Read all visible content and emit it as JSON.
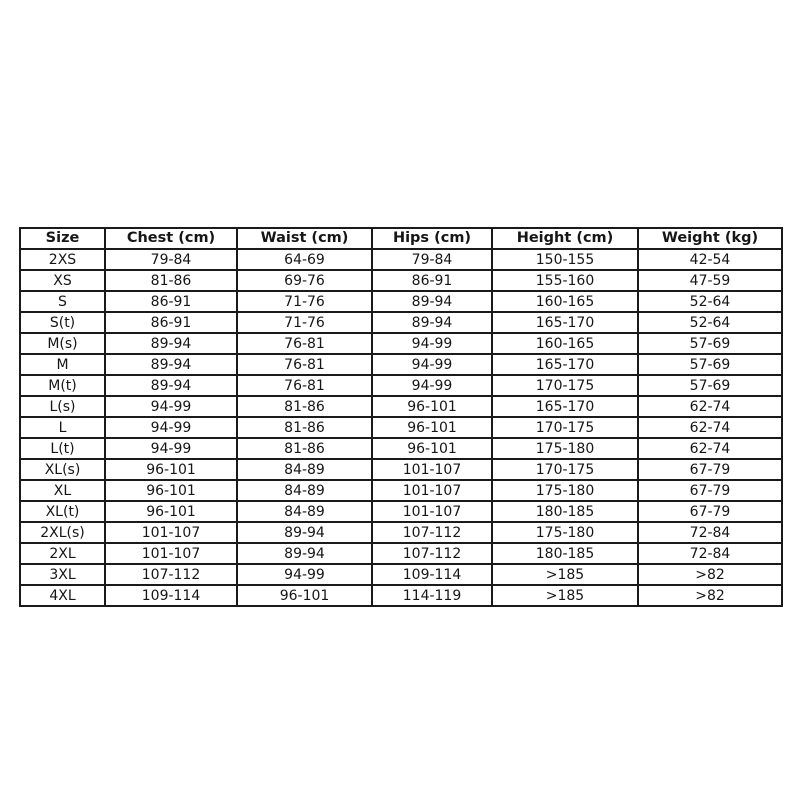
{
  "colors": {
    "border": "#1a1a1a",
    "text": "#161616",
    "row_background": "#ffffff",
    "page_background": "#ffffff"
  },
  "chart_data": {
    "type": "table",
    "columns": [
      "Size",
      "Chest (cm)",
      "Waist (cm)",
      "Hips (cm)",
      "Height (cm)",
      "Weight (kg)"
    ],
    "rows": [
      [
        "2XS",
        "79-84",
        "64-69",
        "79-84",
        "150-155",
        "42-54"
      ],
      [
        "XS",
        "81-86",
        "69-76",
        "86-91",
        "155-160",
        "47-59"
      ],
      [
        "S",
        "86-91",
        "71-76",
        "89-94",
        "160-165",
        "52-64"
      ],
      [
        "S(t)",
        "86-91",
        "71-76",
        "89-94",
        "165-170",
        "52-64"
      ],
      [
        "M(s)",
        "89-94",
        "76-81",
        "94-99",
        "160-165",
        "57-69"
      ],
      [
        "M",
        "89-94",
        "76-81",
        "94-99",
        "165-170",
        "57-69"
      ],
      [
        "M(t)",
        "89-94",
        "76-81",
        "94-99",
        "170-175",
        "57-69"
      ],
      [
        "L(s)",
        "94-99",
        "81-86",
        "96-101",
        "165-170",
        "62-74"
      ],
      [
        "L",
        "94-99",
        "81-86",
        "96-101",
        "170-175",
        "62-74"
      ],
      [
        "L(t)",
        "94-99",
        "81-86",
        "96-101",
        "175-180",
        "62-74"
      ],
      [
        "XL(s)",
        "96-101",
        "84-89",
        "101-107",
        "170-175",
        "67-79"
      ],
      [
        "XL",
        "96-101",
        "84-89",
        "101-107",
        "175-180",
        "67-79"
      ],
      [
        "XL(t)",
        "96-101",
        "84-89",
        "101-107",
        "180-185",
        "67-79"
      ],
      [
        "2XL(s)",
        "101-107",
        "89-94",
        "107-112",
        "175-180",
        "72-84"
      ],
      [
        "2XL",
        "101-107",
        "89-94",
        "107-112",
        "180-185",
        "72-84"
      ],
      [
        "3XL",
        "107-112",
        "94-99",
        "109-114",
        ">185",
        ">82"
      ],
      [
        "4XL",
        "109-114",
        "96-101",
        "114-119",
        ">185",
        ">82"
      ]
    ]
  }
}
